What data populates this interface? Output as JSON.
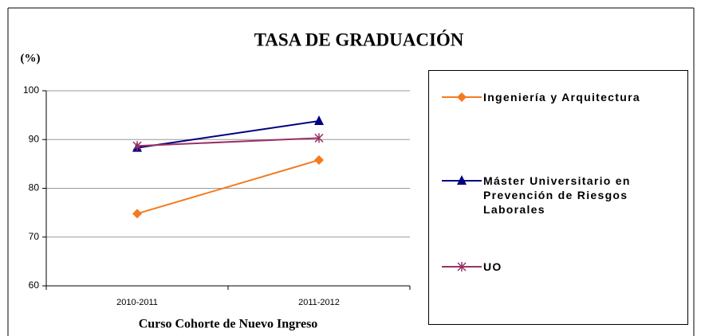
{
  "chart_data": {
    "type": "line",
    "title": "TASA DE GRADUACIÓN",
    "y_label": "(%)",
    "x_label": "Curso Cohorte de Nuevo Ingreso",
    "categories": [
      "2010-2011",
      "2011-2012"
    ],
    "series": [
      {
        "name": "Ingeniería y Arquitectura",
        "color": "#f47a20",
        "marker": "diamond",
        "values": [
          74.8,
          85.8
        ]
      },
      {
        "name": "Máster Universitario en Prevención de Riesgos Laborales",
        "color": "#000080",
        "marker": "triangle",
        "values": [
          88.3,
          93.8
        ]
      },
      {
        "name": "UO",
        "color": "#993366",
        "marker": "asterisk",
        "values": [
          88.7,
          90.3
        ]
      }
    ],
    "ylim": [
      60,
      100
    ],
    "yticks": [
      60,
      70,
      80,
      90,
      100
    ],
    "grid": true,
    "legend": "right"
  }
}
